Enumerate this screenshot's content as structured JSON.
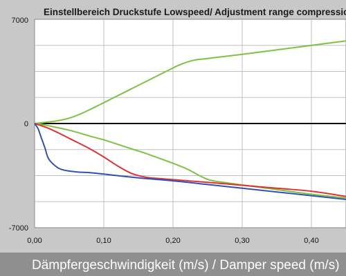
{
  "chart_data": {
    "type": "line",
    "title": "Einstellbereich Druckstufe Lowspeed/ Adjustment range compression lo",
    "xlabel": "Dämpfergeschwindigkeit (m/s) / Damper speed (m/s)",
    "ylabel": "",
    "xlim": [
      0,
      0.45
    ],
    "ylim": [
      -7000,
      7000
    ],
    "x_ticks": [
      {
        "value": 0.0,
        "label": "0,00"
      },
      {
        "value": 0.1,
        "label": "0,10"
      },
      {
        "value": 0.2,
        "label": "0,20"
      },
      {
        "value": 0.3,
        "label": "0,30"
      },
      {
        "value": 0.4,
        "label": "0,40"
      }
    ],
    "y_ticks": [
      {
        "value": 7000,
        "label": "7000"
      },
      {
        "value": 0,
        "label": "0"
      },
      {
        "value": -7000,
        "label": "-7000"
      }
    ],
    "grid": true,
    "series": [
      {
        "color": "#7cc142",
        "points": [
          [
            0,
            0
          ],
          [
            0.03,
            160
          ],
          [
            0.05,
            360
          ],
          [
            0.07,
            720
          ],
          [
            0.1,
            1400
          ],
          [
            0.13,
            2100
          ],
          [
            0.16,
            2800
          ],
          [
            0.19,
            3500
          ],
          [
            0.21,
            3950
          ],
          [
            0.23,
            4250
          ],
          [
            0.25,
            4370
          ],
          [
            0.3,
            4650
          ],
          [
            0.35,
            4950
          ],
          [
            0.4,
            5250
          ],
          [
            0.45,
            5550
          ]
        ]
      },
      {
        "color": "#7cc142",
        "points": [
          [
            0,
            0
          ],
          [
            0.02,
            -150
          ],
          [
            0.05,
            -450
          ],
          [
            0.08,
            -850
          ],
          [
            0.1,
            -1100
          ],
          [
            0.13,
            -1550
          ],
          [
            0.16,
            -2000
          ],
          [
            0.19,
            -2500
          ],
          [
            0.22,
            -3050
          ],
          [
            0.25,
            -3750
          ],
          [
            0.28,
            -4000
          ],
          [
            0.32,
            -4250
          ],
          [
            0.36,
            -4500
          ],
          [
            0.4,
            -4750
          ],
          [
            0.45,
            -5000
          ]
        ]
      },
      {
        "color": "#e03030",
        "points": [
          [
            0,
            0
          ],
          [
            0.02,
            -320
          ],
          [
            0.04,
            -760
          ],
          [
            0.06,
            -1230
          ],
          [
            0.08,
            -1700
          ],
          [
            0.1,
            -2250
          ],
          [
            0.12,
            -2850
          ],
          [
            0.14,
            -3350
          ],
          [
            0.16,
            -3600
          ],
          [
            0.18,
            -3700
          ],
          [
            0.25,
            -3950
          ],
          [
            0.3,
            -4150
          ],
          [
            0.35,
            -4350
          ],
          [
            0.4,
            -4550
          ],
          [
            0.45,
            -4900
          ]
        ]
      },
      {
        "color": "#3050b8",
        "points": [
          [
            0,
            0
          ],
          [
            0.005,
            -350
          ],
          [
            0.01,
            -1000
          ],
          [
            0.015,
            -1650
          ],
          [
            0.02,
            -2350
          ],
          [
            0.03,
            -2850
          ],
          [
            0.04,
            -3100
          ],
          [
            0.06,
            -3250
          ],
          [
            0.08,
            -3300
          ],
          [
            0.1,
            -3400
          ],
          [
            0.15,
            -3650
          ],
          [
            0.2,
            -3850
          ],
          [
            0.25,
            -4100
          ],
          [
            0.3,
            -4350
          ],
          [
            0.35,
            -4600
          ],
          [
            0.4,
            -4850
          ],
          [
            0.45,
            -5100
          ]
        ]
      }
    ],
    "colors": {
      "background": "#c8c8c8",
      "plot_area": "#ffffff",
      "grid": "#c0c0c0",
      "zero_line": "#000000",
      "xlabel_bar": "#8f8f8f"
    }
  }
}
